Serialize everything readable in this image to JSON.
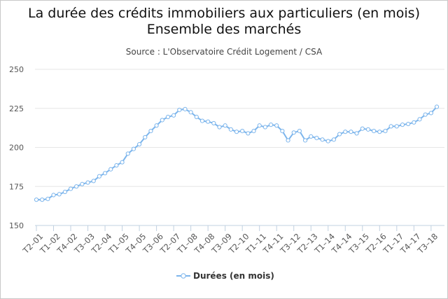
{
  "chart_data": {
    "type": "line",
    "title_line1": "La durée des crédits immobiliers aux particuliers (en mois)",
    "title_line2": "Ensemble des marchés",
    "subtitle": "Source : L'Observatoire Crédit Logement / CSA",
    "ylim": [
      150,
      250
    ],
    "yticks": [
      150,
      175,
      200,
      225,
      250
    ],
    "grid": true,
    "legend_position": "bottom-center",
    "x_tick_labels": [
      "T2–01",
      "T1–02",
      "T4–02",
      "T3–03",
      "T2–04",
      "T1–05",
      "T4–05",
      "T3–06",
      "T2–07",
      "T1–08",
      "T4–08",
      "T3–09",
      "T2–10",
      "T1–11",
      "T4–11",
      "T3–12",
      "T2–13",
      "T1–14",
      "T4–14",
      "T3–15",
      "T2–16",
      "T1–17",
      "T4–17",
      "T3–18"
    ],
    "series": [
      {
        "name": "Durées (en mois)",
        "color": "#7cb5ec",
        "x": [
          "T2–01",
          "T3–01",
          "T4–01",
          "T1–02",
          "T2–02",
          "T3–02",
          "T4–02",
          "T1–03",
          "T2–03",
          "T3–03",
          "T4–03",
          "T1–04",
          "T2–04",
          "T3–04",
          "T4–04",
          "T1–05",
          "T2–05",
          "T3–05",
          "T4–05",
          "T1–06",
          "T2–06",
          "T3–06",
          "T4–06",
          "T1–07",
          "T2–07",
          "T3–07",
          "T4–07",
          "T1–08",
          "T2–08",
          "T3–08",
          "T4–08",
          "T1–09",
          "T2–09",
          "T3–09",
          "T4–09",
          "T1–10",
          "T2–10",
          "T3–10",
          "T4–10",
          "T1–11",
          "T2–11",
          "T3–11",
          "T4–11",
          "T1–12",
          "T2–12",
          "T3–12",
          "T4–12",
          "T1–13",
          "T2–13",
          "T3–13",
          "T4–13",
          "T1–14",
          "T2–14",
          "T3–14",
          "T4–14",
          "T1–15",
          "T2–15",
          "T3–15",
          "T4–15",
          "T1–16",
          "T2–16",
          "T3–16",
          "T4–16",
          "T1–17",
          "T2–17",
          "T3–17",
          "T4–17",
          "T1–18",
          "T2–18",
          "T3–18",
          "T4–18"
        ],
        "values": [
          166.5,
          166.5,
          167,
          169.5,
          170,
          171.5,
          173.5,
          175,
          176.5,
          177.5,
          178.5,
          181.5,
          183.5,
          186,
          188.5,
          190.5,
          196,
          199,
          202,
          206.5,
          210.5,
          214,
          217.5,
          219.5,
          220.5,
          224,
          224.5,
          222.5,
          219.5,
          217,
          216.5,
          215.5,
          213,
          214,
          211.5,
          210,
          210.5,
          209,
          210.5,
          214,
          213,
          214.5,
          214,
          210.5,
          204.5,
          209.5,
          210.5,
          204.5,
          207,
          206,
          205,
          204,
          205,
          208.5,
          210,
          210,
          209,
          212,
          211.5,
          210.5,
          210,
          210.5,
          213.5,
          213.5,
          214.5,
          215,
          216,
          218,
          221,
          222,
          226
        ]
      }
    ]
  }
}
